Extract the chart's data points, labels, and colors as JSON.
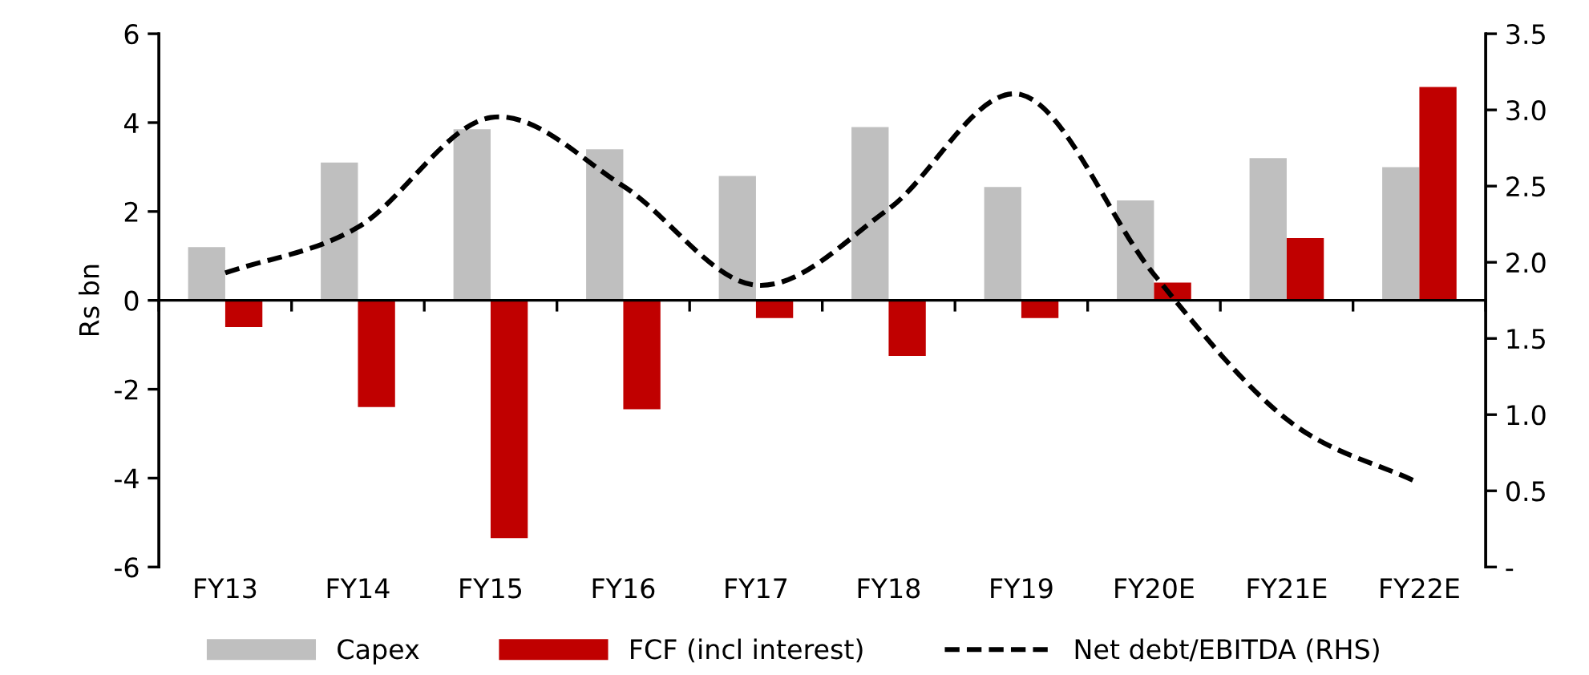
{
  "chart_data": {
    "type": "bar",
    "ylabel": "Rs bn",
    "categories": [
      "FY13",
      "FY14",
      "FY15",
      "FY16",
      "FY17",
      "FY18",
      "FY19",
      "FY20E",
      "FY21E",
      "FY22E"
    ],
    "series": [
      {
        "name": "Capex",
        "color": "#bfbfbf",
        "values": [
          1.2,
          3.1,
          3.85,
          3.4,
          2.8,
          3.9,
          2.55,
          2.25,
          3.2,
          3.0
        ]
      },
      {
        "name": "FCF (incl interest)",
        "color": "#c00000",
        "values": [
          -0.6,
          -2.4,
          -5.35,
          -2.45,
          -0.4,
          -1.25,
          -0.4,
          0.4,
          1.4,
          4.8
        ]
      },
      {
        "name": "Net debt/EBITDA (RHS)",
        "type": "line",
        "axis": "y2",
        "color": "#000000",
        "line_style": "dashed",
        "values": [
          1.93,
          2.23,
          2.95,
          2.5,
          1.85,
          2.35,
          3.1,
          1.92,
          0.97,
          0.55
        ]
      }
    ],
    "ylim": [
      -6,
      6
    ],
    "yticks": [
      -6,
      -4,
      -2,
      0,
      2,
      4,
      6
    ],
    "y2lim": [
      0,
      3.5
    ],
    "y2ticks": [
      {
        "value": 0,
        "label": "-"
      },
      0.5,
      {
        "value": 1,
        "label": "1.0"
      },
      1.5,
      {
        "value": 2,
        "label": "2.0"
      },
      2.5,
      {
        "value": 3,
        "label": "3.0"
      },
      3.5
    ],
    "legend": "bottom"
  }
}
